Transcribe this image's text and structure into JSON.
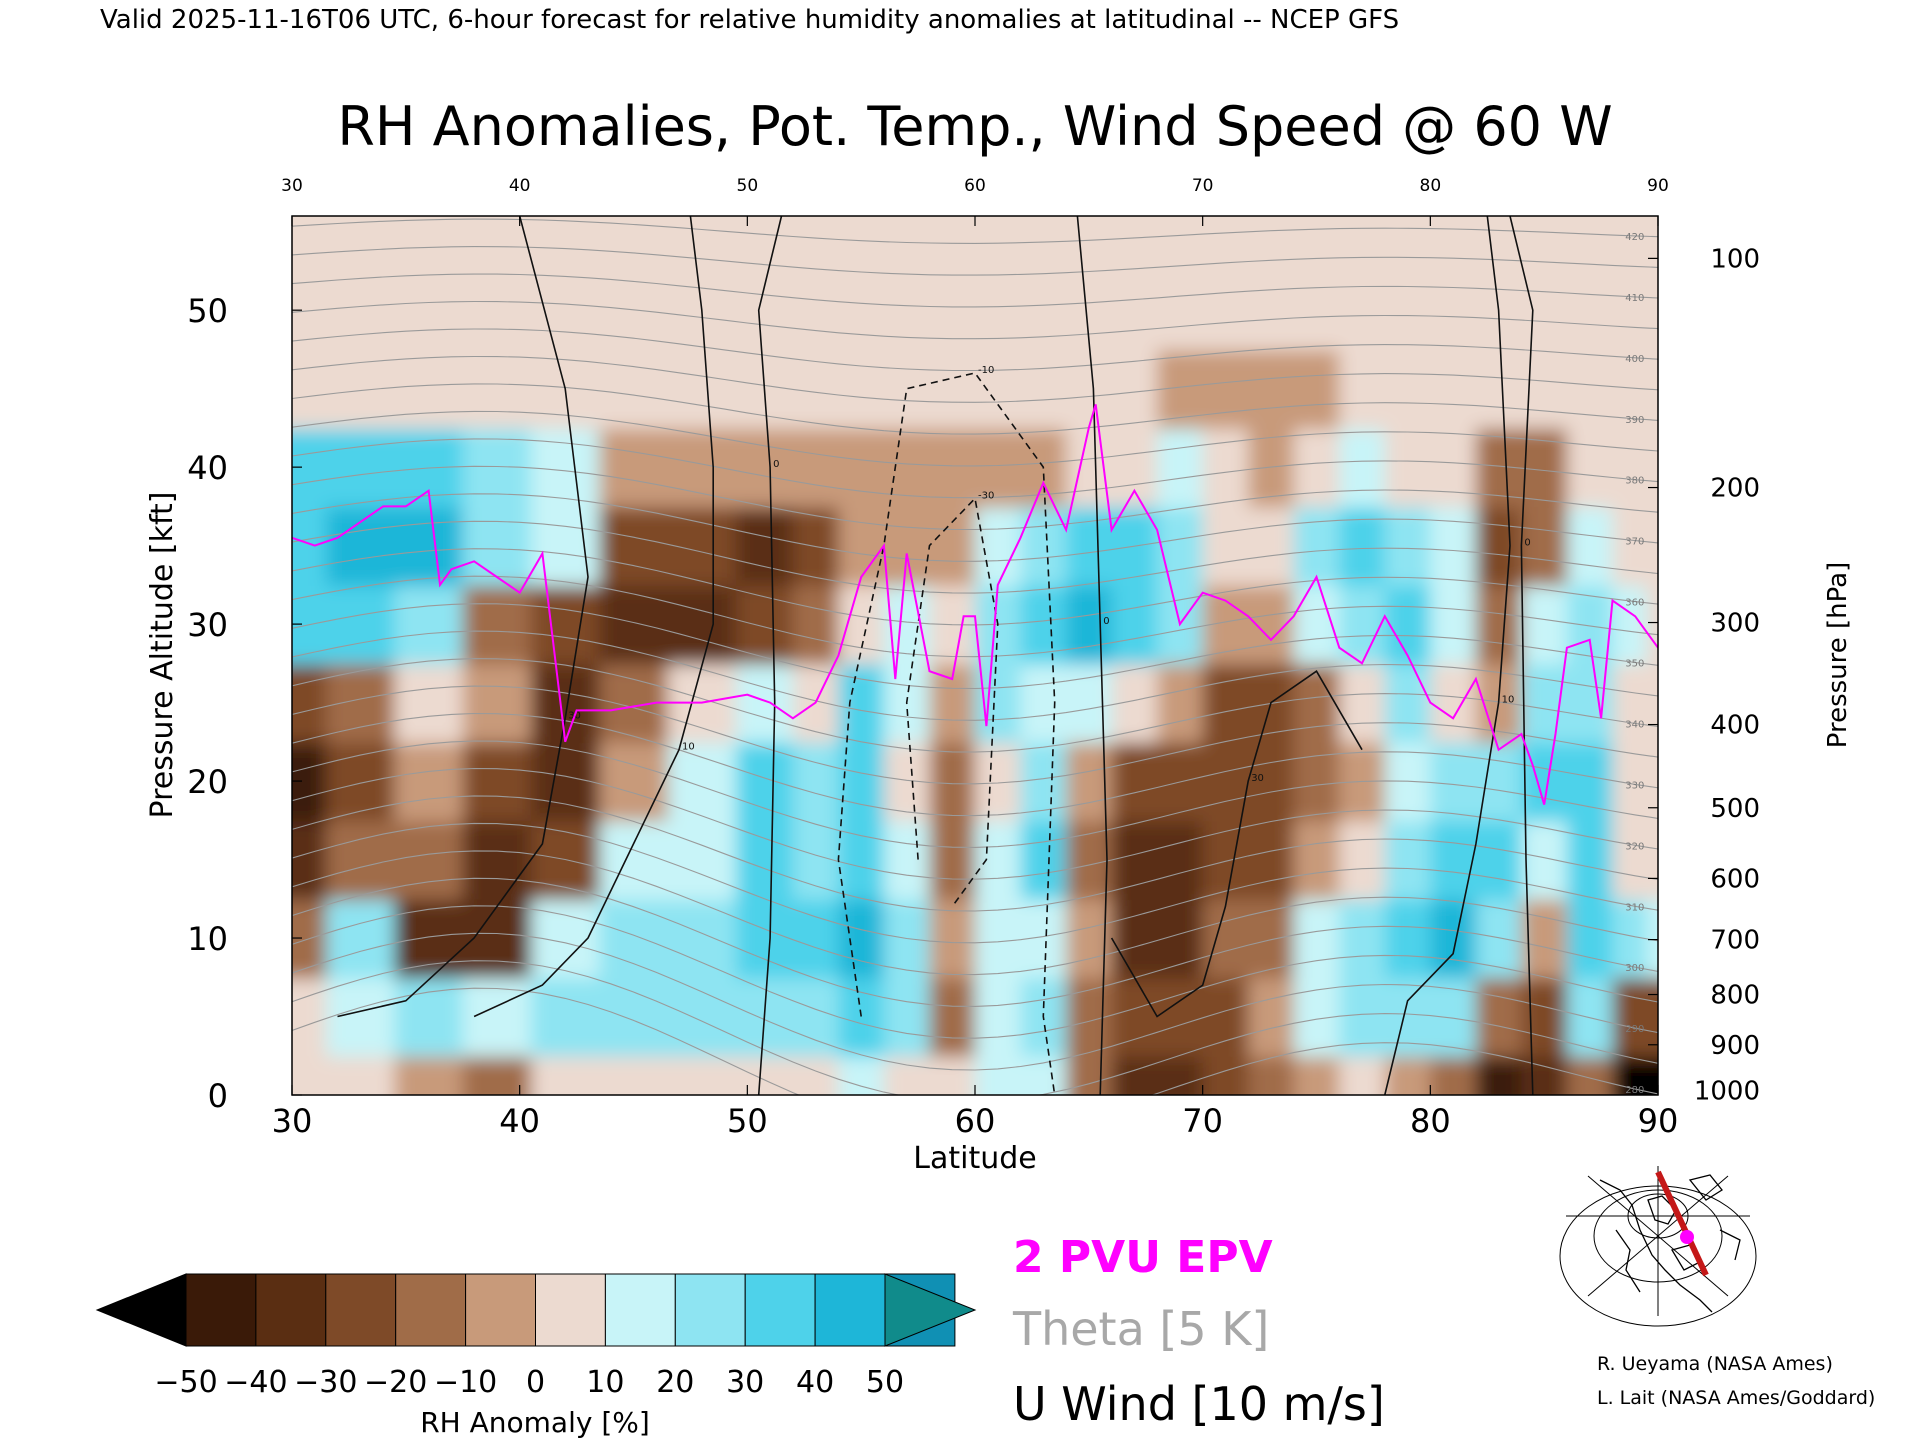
{
  "header": "Valid 2025-11-16T06 UTC, 6-hour forecast for relative humidity anomalies at latitudinal -- NCEP GFS",
  "credits": [
    "R. Ueyama (NASA Ames)",
    "L. Lait (NASA Ames/Goddard)"
  ],
  "chart_data": {
    "type": "heatmap",
    "title": "RH Anomalies, Pot. Temp., Wind Speed @ 60 W",
    "xlabel": "Latitude",
    "ylabel": "Pressure Altitude [kft]",
    "y2label": "Pressure [hPa]",
    "xlim": [
      30,
      90
    ],
    "ylim": [
      0,
      56
    ],
    "x_ticks": [
      30,
      40,
      50,
      60,
      70,
      80,
      90
    ],
    "y_ticks": [
      0,
      10,
      20,
      30,
      40,
      50
    ],
    "pressure_ticks": [
      {
        "label": "100",
        "kft": 53.3
      },
      {
        "label": "200",
        "kft": 38.7
      },
      {
        "label": "300",
        "kft": 30.1
      },
      {
        "label": "400",
        "kft": 23.6
      },
      {
        "label": "500",
        "kft": 18.3
      },
      {
        "label": "600",
        "kft": 13.8
      },
      {
        "label": "700",
        "kft": 9.9
      },
      {
        "label": "800",
        "kft": 6.4
      },
      {
        "label": "900",
        "kft": 3.2
      },
      {
        "label": "1000",
        "kft": 0.3
      }
    ],
    "colorbar": {
      "label": "RH Anomaly [%]",
      "ticks": [
        -50,
        -40,
        -30,
        -20,
        -10,
        0,
        10,
        20,
        30,
        40,
        50
      ],
      "colors": [
        "#3a1a08",
        "#5a2e12",
        "#7e4a28",
        "#a06c48",
        "#c89a7a",
        "#ecdad0",
        "#c8f4f8",
        "#8ee4f2",
        "#4ed2ea",
        "#1eb6d8",
        "#1090b4"
      ],
      "under_color": "#000000",
      "over_color": "#108b8b"
    },
    "anomaly_columns": [
      {
        "lat": 30,
        "values": [
          0,
          5,
          -20,
          -35,
          -45,
          -30,
          30,
          35,
          30,
          0,
          0,
          0,
          0
        ]
      },
      {
        "lat": 33,
        "values": [
          5,
          15,
          20,
          -15,
          -25,
          -20,
          35,
          40,
          30,
          0,
          0,
          0,
          0
        ]
      },
      {
        "lat": 36,
        "values": [
          -10,
          20,
          -40,
          -20,
          -10,
          5,
          25,
          40,
          35,
          5,
          0,
          0,
          0
        ]
      },
      {
        "lat": 39,
        "values": [
          -20,
          10,
          -35,
          -40,
          -30,
          -10,
          -20,
          25,
          25,
          0,
          0,
          0,
          0
        ]
      },
      {
        "lat": 42,
        "values": [
          5,
          20,
          15,
          -25,
          -40,
          -35,
          -30,
          15,
          15,
          0,
          0,
          0,
          0
        ]
      },
      {
        "lat": 45,
        "values": [
          5,
          25,
          25,
          10,
          -10,
          -20,
          -40,
          -25,
          -5,
          0,
          0,
          0,
          0
        ]
      },
      {
        "lat": 48,
        "values": [
          5,
          20,
          25,
          15,
          10,
          5,
          -35,
          -30,
          -10,
          0,
          0,
          0,
          0
        ]
      },
      {
        "lat": 51,
        "values": [
          0,
          25,
          30,
          35,
          30,
          15,
          -30,
          -35,
          -10,
          0,
          0,
          0,
          0
        ]
      },
      {
        "lat": 53,
        "values": [
          5,
          25,
          35,
          25,
          20,
          5,
          -15,
          -25,
          -10,
          0,
          0,
          0,
          0
        ]
      },
      {
        "lat": 55,
        "values": [
          10,
          30,
          40,
          35,
          30,
          30,
          5,
          -10,
          -5,
          0,
          0,
          0,
          0
        ]
      },
      {
        "lat": 57,
        "values": [
          5,
          20,
          20,
          10,
          5,
          15,
          10,
          -5,
          -5,
          0,
          0,
          0,
          0
        ]
      },
      {
        "lat": 59,
        "values": [
          5,
          -15,
          -10,
          -20,
          -15,
          -10,
          5,
          -5,
          -5,
          0,
          0,
          0,
          0
        ]
      },
      {
        "lat": 61,
        "values": [
          10,
          15,
          15,
          10,
          5,
          20,
          25,
          15,
          -5,
          0,
          0,
          0,
          0
        ]
      },
      {
        "lat": 63,
        "values": [
          10,
          20,
          15,
          30,
          25,
          15,
          35,
          25,
          -5,
          0,
          0,
          0,
          0
        ]
      },
      {
        "lat": 65,
        "values": [
          -20,
          -15,
          -10,
          -20,
          -10,
          10,
          40,
          30,
          0,
          0,
          0,
          0,
          0
        ]
      },
      {
        "lat": 67,
        "values": [
          -35,
          -30,
          -35,
          -40,
          -25,
          5,
          35,
          30,
          5,
          0,
          0,
          0,
          0
        ]
      },
      {
        "lat": 69,
        "values": [
          -40,
          -30,
          -40,
          -35,
          -25,
          -10,
          20,
          25,
          10,
          -5,
          0,
          0,
          0
        ]
      },
      {
        "lat": 71,
        "values": [
          -25,
          -30,
          -20,
          -30,
          -25,
          -30,
          -5,
          5,
          0,
          -5,
          0,
          0,
          0
        ]
      },
      {
        "lat": 73,
        "values": [
          -15,
          -10,
          -15,
          -25,
          -30,
          -30,
          -5,
          0,
          -10,
          -5,
          0,
          0,
          0
        ]
      },
      {
        "lat": 75,
        "values": [
          -5,
          10,
          15,
          -10,
          -20,
          -15,
          15,
          20,
          5,
          -5,
          0,
          0,
          0
        ]
      },
      {
        "lat": 77,
        "values": [
          0,
          20,
          25,
          5,
          -10,
          5,
          25,
          30,
          10,
          0,
          0,
          0,
          0
        ]
      },
      {
        "lat": 79,
        "values": [
          -10,
          25,
          35,
          20,
          10,
          20,
          30,
          25,
          5,
          0,
          0,
          0,
          0
        ]
      },
      {
        "lat": 81,
        "values": [
          -15,
          20,
          40,
          35,
          20,
          5,
          15,
          15,
          0,
          0,
          0,
          0,
          0
        ]
      },
      {
        "lat": 83,
        "values": [
          -45,
          -15,
          20,
          35,
          25,
          -10,
          -20,
          -30,
          -20,
          0,
          0,
          0,
          0
        ]
      },
      {
        "lat": 85,
        "values": [
          -35,
          -25,
          -10,
          15,
          30,
          20,
          10,
          -15,
          -15,
          0,
          0,
          0,
          0
        ]
      },
      {
        "lat": 87,
        "values": [
          -20,
          25,
          30,
          35,
          30,
          25,
          20,
          15,
          5,
          0,
          0,
          0,
          0
        ]
      },
      {
        "lat": 89,
        "values": [
          -50,
          -25,
          20,
          5,
          0,
          5,
          10,
          5,
          0,
          0,
          0,
          0,
          0
        ]
      },
      {
        "lat": 90,
        "values": [
          -55,
          -30,
          10,
          0,
          0,
          0,
          5,
          5,
          0,
          0,
          0,
          0,
          0
        ]
      }
    ],
    "anomaly_levels_kft": [
      0,
      5,
      10,
      15,
      20,
      25,
      30,
      35,
      40,
      45,
      50,
      53,
      56
    ],
    "epv_2pvu": [
      [
        30,
        35.5
      ],
      [
        31,
        35
      ],
      [
        32,
        35.5
      ],
      [
        33,
        36.5
      ],
      [
        34,
        37.5
      ],
      [
        35,
        37.5
      ],
      [
        36,
        38.5
      ],
      [
        36.5,
        32.5
      ],
      [
        37,
        33.5
      ],
      [
        38,
        34
      ],
      [
        39,
        33
      ],
      [
        40,
        32
      ],
      [
        41,
        34.5
      ],
      [
        42,
        22.5
      ],
      [
        42.5,
        24.5
      ],
      [
        44,
        24.5
      ],
      [
        46,
        25
      ],
      [
        48,
        25
      ],
      [
        50,
        25.5
      ],
      [
        51,
        25
      ],
      [
        52,
        24
      ],
      [
        53,
        25
      ],
      [
        54,
        28
      ],
      [
        55,
        33
      ],
      [
        56,
        35
      ],
      [
        56.5,
        26.5
      ],
      [
        57,
        34.5
      ],
      [
        58,
        27
      ],
      [
        59,
        26.5
      ],
      [
        59.5,
        30.5
      ],
      [
        60,
        30.5
      ],
      [
        60.5,
        23.5
      ],
      [
        61,
        32.5
      ],
      [
        62,
        35.5
      ],
      [
        63,
        39
      ],
      [
        64,
        36
      ],
      [
        65,
        42.5
      ],
      [
        65.3,
        44
      ],
      [
        66,
        36
      ],
      [
        67,
        38.5
      ],
      [
        68,
        36
      ],
      [
        69,
        30
      ],
      [
        70,
        32
      ],
      [
        71,
        31.5
      ],
      [
        72,
        30.5
      ],
      [
        73,
        29
      ],
      [
        74,
        30.5
      ],
      [
        75,
        33
      ],
      [
        76,
        28.5
      ],
      [
        77,
        27.5
      ],
      [
        78,
        30.5
      ],
      [
        79,
        28
      ],
      [
        80,
        25
      ],
      [
        81,
        24
      ],
      [
        82,
        26.5
      ],
      [
        83,
        22
      ],
      [
        84,
        23
      ],
      [
        84.5,
        21
      ],
      [
        85,
        18.5
      ],
      [
        85.5,
        23
      ],
      [
        86,
        28.5
      ],
      [
        87,
        29
      ],
      [
        87.5,
        24
      ],
      [
        88,
        31.5
      ],
      [
        89,
        30.5
      ],
      [
        90,
        28.5
      ]
    ],
    "theta_range_K": [
      280,
      420
    ],
    "theta_interval_K": 5,
    "theta_labels": [
      280,
      290,
      300,
      310,
      320,
      330,
      340,
      350,
      360,
      370,
      380,
      390,
      400,
      410,
      420
    ],
    "u_wind_contours": [
      {
        "value": 0,
        "dashed": false,
        "points": [
          [
            50.5,
            0
          ],
          [
            51,
            10
          ],
          [
            51.2,
            25
          ],
          [
            51,
            40
          ],
          [
            50.5,
            50
          ],
          [
            51.5,
            56
          ]
        ]
      },
      {
        "value": 0,
        "dashed": false,
        "points": [
          [
            65.5,
            0
          ],
          [
            65.8,
            15
          ],
          [
            65.5,
            30
          ],
          [
            65.2,
            45
          ],
          [
            64.5,
            56
          ]
        ]
      },
      {
        "value": 0,
        "dashed": false,
        "points": [
          [
            84.5,
            0
          ],
          [
            84.2,
            15
          ],
          [
            84,
            35
          ],
          [
            84.5,
            50
          ],
          [
            83.5,
            56
          ]
        ]
      },
      {
        "value": 10,
        "dashed": false,
        "points": [
          [
            38,
            5
          ],
          [
            41,
            7
          ],
          [
            43,
            10
          ],
          [
            45,
            16
          ],
          [
            47,
            22
          ],
          [
            48.5,
            30
          ],
          [
            48.5,
            40
          ],
          [
            48,
            50
          ],
          [
            47.5,
            56
          ]
        ]
      },
      {
        "value": 10,
        "dashed": false,
        "points": [
          [
            78,
            0
          ],
          [
            79,
            6
          ],
          [
            81,
            9
          ],
          [
            82,
            16
          ],
          [
            83,
            25
          ],
          [
            83.5,
            35
          ],
          [
            83,
            50
          ],
          [
            82.5,
            56
          ]
        ]
      },
      {
        "value": 30,
        "dashed": false,
        "points": [
          [
            32,
            5
          ],
          [
            35,
            6
          ],
          [
            38,
            10
          ],
          [
            41,
            16
          ],
          [
            42,
            24
          ],
          [
            43,
            33
          ],
          [
            42,
            45
          ],
          [
            40,
            56
          ]
        ]
      },
      {
        "value": 30,
        "dashed": false,
        "points": [
          [
            66,
            10
          ],
          [
            68,
            5
          ],
          [
            70,
            7
          ],
          [
            71,
            12
          ],
          [
            72,
            20
          ],
          [
            73,
            25
          ],
          [
            75,
            27
          ],
          [
            77,
            22
          ]
        ]
      },
      {
        "value": -10,
        "dashed": true,
        "points": [
          [
            55,
            5
          ],
          [
            54,
            15
          ],
          [
            54.5,
            25
          ],
          [
            56,
            35
          ],
          [
            57,
            45
          ],
          [
            60,
            46
          ],
          [
            63,
            40
          ],
          [
            63.5,
            25
          ],
          [
            63,
            5
          ],
          [
            63.5,
            0
          ]
        ]
      },
      {
        "value": -30,
        "dashed": true,
        "points": [
          [
            57.5,
            15
          ],
          [
            57,
            25
          ],
          [
            58,
            35
          ],
          [
            60,
            38
          ],
          [
            61,
            30
          ],
          [
            60.5,
            15
          ],
          [
            59,
            12
          ]
        ]
      }
    ]
  }
}
